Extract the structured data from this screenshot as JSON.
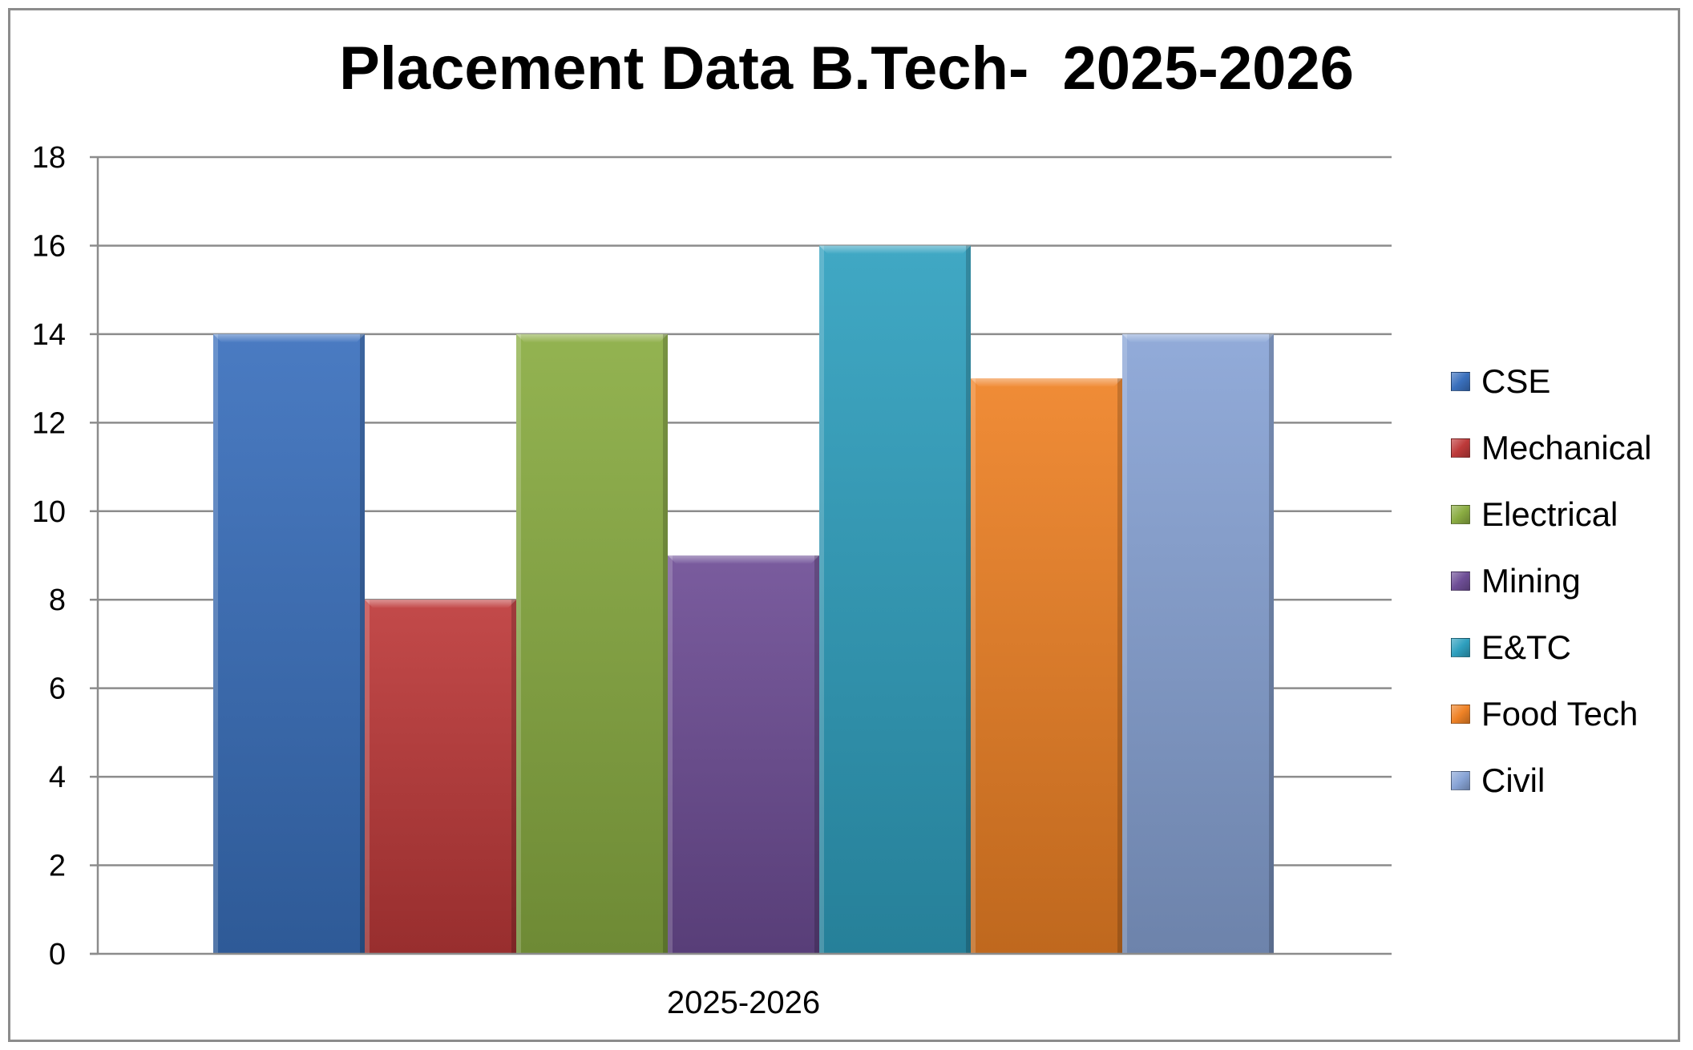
{
  "chart_data": {
    "type": "bar",
    "title": "Placement Data B.Tech-  2025-2026",
    "xlabel": "",
    "ylabel": "",
    "categories": [
      "2025-2026"
    ],
    "series": [
      {
        "name": "CSE",
        "values": [
          14
        ],
        "color": "#3a70bd"
      },
      {
        "name": "Mechanical",
        "values": [
          8
        ],
        "color": "#be3a3a"
      },
      {
        "name": "Electrical",
        "values": [
          14
        ],
        "color": "#8aac42"
      },
      {
        "name": "Mining",
        "values": [
          9
        ],
        "color": "#6e4e96"
      },
      {
        "name": "E&TC",
        "values": [
          16
        ],
        "color": "#2fa0bf"
      },
      {
        "name": "Food Tech",
        "values": [
          13
        ],
        "color": "#ef8226"
      },
      {
        "name": "Civil",
        "values": [
          14
        ],
        "color": "#88a4d6"
      }
    ],
    "ylim": [
      0,
      18
    ],
    "yticks": [
      0,
      2,
      4,
      6,
      8,
      10,
      12,
      14,
      16,
      18
    ],
    "grid": true,
    "legend_position": "right"
  }
}
